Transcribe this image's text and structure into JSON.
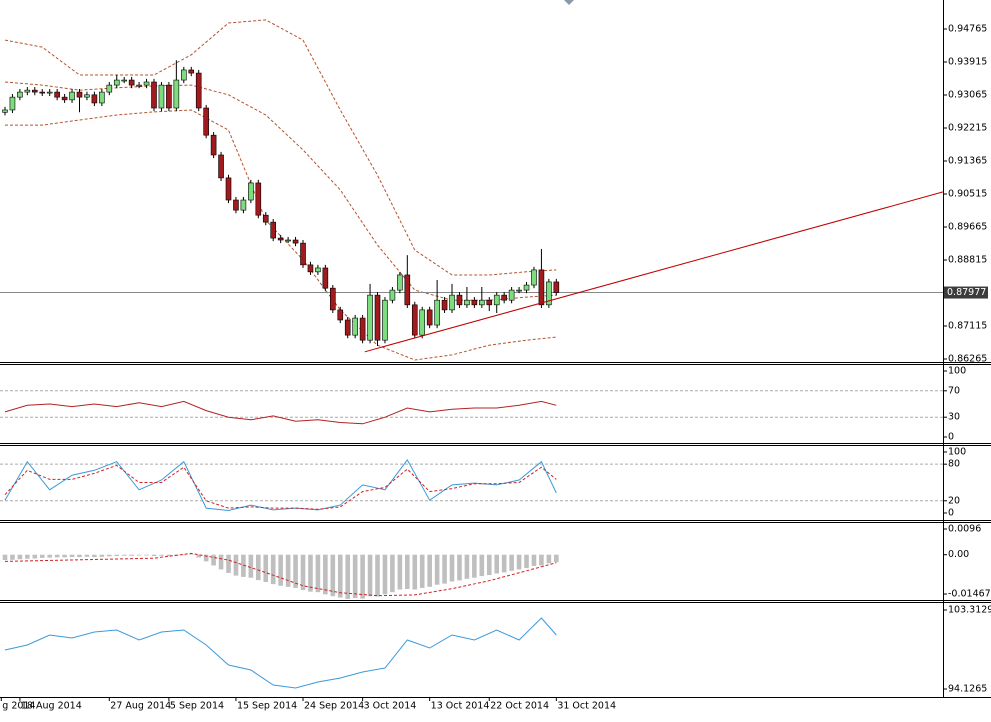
{
  "chart_data": [
    {
      "type": "candlestick",
      "xlim": [
        -0.67,
        125.9
      ],
      "ylim": [
        0.86188,
        0.95512
      ],
      "yticks": [
        0.94765,
        0.93915,
        0.93065,
        0.92215,
        0.91365,
        0.90515,
        0.89665,
        0.88815,
        0.87115,
        0.86265
      ],
      "up_color": "#7ddc7d",
      "down_color": "#a01a1e",
      "open": [
        0.9262,
        0.9268,
        0.9301,
        0.9314,
        0.9319,
        0.9314,
        0.9312,
        0.9314,
        0.9301,
        0.9294,
        0.9314,
        0.9301,
        0.9307,
        0.9286,
        0.9314,
        0.9332,
        0.9345,
        0.9345,
        0.9332,
        0.9332,
        0.934,
        0.9273,
        0.9332,
        0.9273,
        0.9345,
        0.9371,
        0.9363,
        0.9273,
        0.9203,
        0.9152,
        0.9093,
        0.9036,
        0.901,
        0.9036,
        0.908,
        0.8997,
        0.8979,
        0.8938,
        0.8933,
        0.8933,
        0.8925,
        0.8869,
        0.8851,
        0.8861,
        0.8809,
        0.8753,
        0.8727,
        0.8688,
        0.8732,
        0.8675,
        0.8791,
        0.8675,
        0.8778,
        0.8804,
        0.8843,
        0.8766,
        0.8688,
        0.8753,
        0.8714,
        0.8778,
        0.8753,
        0.8791,
        0.8766,
        0.8778,
        0.8766,
        0.8778,
        0.8766,
        0.8791,
        0.8778,
        0.8804,
        0.8804,
        0.8817,
        0.8856,
        0.8766,
        0.8825
      ],
      "high": [
        0.9276,
        0.9309,
        0.9322,
        0.9327,
        0.9327,
        0.9322,
        0.9322,
        0.9322,
        0.9309,
        0.9322,
        0.9322,
        0.9315,
        0.9315,
        0.9322,
        0.934,
        0.9358,
        0.9353,
        0.9353,
        0.934,
        0.9348,
        0.9348,
        0.934,
        0.934,
        0.9396,
        0.9379,
        0.9379,
        0.9371,
        0.9281,
        0.9211,
        0.916,
        0.9101,
        0.9044,
        0.9044,
        0.9088,
        0.9088,
        0.9005,
        0.8987,
        0.8946,
        0.8941,
        0.8941,
        0.8933,
        0.8877,
        0.8869,
        0.8869,
        0.8817,
        0.8761,
        0.8735,
        0.874,
        0.874,
        0.882,
        0.8799,
        0.8786,
        0.8812,
        0.8851,
        0.8894,
        0.8774,
        0.8761,
        0.8761,
        0.883,
        0.8786,
        0.882,
        0.8799,
        0.8812,
        0.8786,
        0.8812,
        0.8786,
        0.8799,
        0.8799,
        0.8812,
        0.8812,
        0.8825,
        0.8864,
        0.891,
        0.8833,
        0.8833
      ],
      "low": [
        0.9254,
        0.926,
        0.9293,
        0.9306,
        0.9306,
        0.9304,
        0.9304,
        0.9293,
        0.9286,
        0.9286,
        0.9262,
        0.9293,
        0.9278,
        0.9278,
        0.9306,
        0.9324,
        0.9337,
        0.9324,
        0.9324,
        0.9324,
        0.9265,
        0.9265,
        0.9265,
        0.9265,
        0.9337,
        0.9355,
        0.9265,
        0.9195,
        0.9144,
        0.9085,
        0.9028,
        0.9002,
        0.9002,
        0.9028,
        0.8989,
        0.8971,
        0.893,
        0.8925,
        0.8925,
        0.8917,
        0.8861,
        0.8843,
        0.8843,
        0.8801,
        0.8745,
        0.8719,
        0.868,
        0.868,
        0.8667,
        0.8667,
        0.866,
        0.8667,
        0.877,
        0.8796,
        0.8758,
        0.868,
        0.868,
        0.8706,
        0.8706,
        0.8745,
        0.8745,
        0.8758,
        0.8758,
        0.8758,
        0.8758,
        0.875,
        0.8745,
        0.877,
        0.877,
        0.8796,
        0.8796,
        0.8809,
        0.8758,
        0.8758,
        0.879
      ],
      "close": [
        0.9268,
        0.9301,
        0.9314,
        0.9319,
        0.9314,
        0.9312,
        0.9314,
        0.9301,
        0.9294,
        0.9314,
        0.9301,
        0.9307,
        0.9286,
        0.9314,
        0.9332,
        0.9345,
        0.9345,
        0.9332,
        0.9332,
        0.934,
        0.9273,
        0.9332,
        0.9273,
        0.9345,
        0.9371,
        0.9363,
        0.9273,
        0.9203,
        0.9152,
        0.9093,
        0.9036,
        0.901,
        0.9036,
        0.908,
        0.8997,
        0.8979,
        0.8938,
        0.8933,
        0.8933,
        0.8925,
        0.8869,
        0.8851,
        0.8861,
        0.8809,
        0.8753,
        0.8727,
        0.8688,
        0.8732,
        0.8675,
        0.8791,
        0.8675,
        0.8778,
        0.8804,
        0.8843,
        0.8766,
        0.8688,
        0.8753,
        0.8714,
        0.8778,
        0.8753,
        0.8791,
        0.8766,
        0.8778,
        0.8766,
        0.8778,
        0.8766,
        0.8791,
        0.8778,
        0.8804,
        0.8804,
        0.8817,
        0.8856,
        0.8766,
        0.8825,
        0.87977
      ],
      "bands": {
        "color": "#b5522e",
        "x": [
          0,
          5,
          10,
          15,
          20,
          25,
          30,
          35,
          40,
          45,
          50,
          55,
          60,
          65,
          70,
          74
        ],
        "upper": [
          0.9448,
          0.943,
          0.9358,
          0.9358,
          0.9358,
          0.941,
          0.9492,
          0.95,
          0.9448,
          0.9268,
          0.91,
          0.8907,
          0.8843,
          0.8843,
          0.8851,
          0.8856
        ],
        "middle": [
          0.934,
          0.9332,
          0.9319,
          0.9325,
          0.933,
          0.9332,
          0.9307,
          0.9255,
          0.9165,
          0.9062,
          0.892,
          0.8804,
          0.8778,
          0.8778,
          0.8786,
          0.8791
        ],
        "lower": [
          0.9229,
          0.9229,
          0.9242,
          0.9255,
          0.9263,
          0.9268,
          0.9216,
          0.8984,
          0.8882,
          0.8753,
          0.8662,
          0.8624,
          0.8637,
          0.8662,
          0.8675,
          0.8683
        ]
      },
      "trendline": {
        "color": "#c00000",
        "x": [
          48.3,
          125.9
        ],
        "values": [
          0.8645,
          0.9057
        ]
      },
      "last_price": 0.87977
    },
    {
      "type": "line",
      "xlim": [
        -0.67,
        125.9
      ],
      "ylim": [
        -9.1,
        109.1
      ],
      "yticks": [
        100,
        70,
        30,
        0
      ],
      "levels": [
        70,
        30
      ],
      "x": [
        0,
        3,
        6,
        9,
        12,
        15,
        18,
        21,
        24,
        27,
        30,
        33,
        36,
        39,
        42,
        45,
        48,
        51,
        54,
        57,
        60,
        63,
        66,
        69,
        72,
        74
      ],
      "series": [
        {
          "color": "#b22222",
          "values": [
            38,
            48,
            50,
            46,
            50,
            46,
            52,
            46,
            54,
            40,
            30,
            26,
            32,
            24,
            26,
            22,
            20,
            30,
            44,
            38,
            42,
            44,
            44,
            48,
            54,
            48
          ]
        }
      ]
    },
    {
      "type": "line",
      "xlim": [
        -0.67,
        125.9
      ],
      "ylim": [
        -11.5,
        109.8
      ],
      "yticks": [
        100,
        80,
        20,
        0
      ],
      "levels": [
        80,
        20
      ],
      "x": [
        0,
        3,
        6,
        9,
        12,
        15,
        18,
        21,
        24,
        27,
        30,
        33,
        36,
        39,
        42,
        45,
        48,
        51,
        54,
        57,
        60,
        63,
        66,
        69,
        72,
        74
      ],
      "series": [
        {
          "color": "#3a9ad9",
          "values": [
            21,
            84,
            38,
            62,
            70,
            84,
            38,
            54,
            84,
            8,
            4,
            13,
            5,
            8,
            5,
            13,
            46,
            38,
            87,
            21,
            46,
            49,
            46,
            54,
            84,
            33
          ]
        },
        {
          "color": "#d02020",
          "dashed": true,
          "values": [
            30,
            70,
            55,
            55,
            65,
            78,
            50,
            50,
            75,
            20,
            8,
            10,
            8,
            8,
            6,
            10,
            35,
            42,
            72,
            35,
            40,
            48,
            48,
            50,
            75,
            55
          ]
        }
      ]
    },
    {
      "type": "bar",
      "xlim": [
        -0.67,
        125.9
      ],
      "ylim": [
        -0.01692,
        0.01184
      ],
      "yticks": [
        0.0096,
        {
          "value": 0,
          "label": "0.00"
        },
        -0.014678
      ],
      "color": "#bfbfbf",
      "values": [
        -0.002,
        -0.0019,
        -0.0017,
        -0.0015,
        -0.0014,
        -0.0012,
        -0.0011,
        -0.001,
        -0.001,
        -0.0009,
        -0.0009,
        -0.0008,
        -0.0009,
        -0.0008,
        -0.0006,
        -0.0005,
        -0.0004,
        -0.0004,
        -0.0003,
        -0.0003,
        -0.0005,
        -0.0004,
        -0.0006,
        -0.0004,
        -0.0002,
        0.0001,
        -0.001,
        -0.0025,
        -0.004,
        -0.0055,
        -0.0068,
        -0.0078,
        -0.0083,
        -0.0086,
        -0.0095,
        -0.0102,
        -0.011,
        -0.0116,
        -0.012,
        -0.0124,
        -0.0132,
        -0.0138,
        -0.014,
        -0.0148,
        -0.0155,
        -0.016,
        -0.0165,
        -0.0162,
        -0.0164,
        -0.0155,
        -0.0156,
        -0.0148,
        -0.014,
        -0.013,
        -0.0128,
        -0.013,
        -0.0124,
        -0.012,
        -0.0112,
        -0.0108,
        -0.01,
        -0.0096,
        -0.009,
        -0.0086,
        -0.008,
        -0.0076,
        -0.007,
        -0.0066,
        -0.006,
        -0.0055,
        -0.005,
        -0.0042,
        -0.004,
        -0.0032,
        -0.0028
      ],
      "signal": {
        "color": "#d02020",
        "dashed": true,
        "x": [
          0,
          20,
          25,
          30,
          35,
          40,
          45,
          50,
          55,
          60,
          65,
          70,
          74
        ],
        "values": [
          -0.0025,
          -0.0013,
          0.0005,
          -0.002,
          -0.0067,
          -0.0116,
          -0.0142,
          -0.0153,
          -0.015,
          -0.0127,
          -0.0097,
          -0.006,
          -0.003
        ]
      }
    },
    {
      "type": "line",
      "xlim": [
        -0.67,
        125.9
      ],
      "ylim": [
        93.196,
        104.127
      ],
      "yticks": [
        103.3129,
        94.1265
      ],
      "x": [
        0,
        3,
        6,
        9,
        12,
        15,
        18,
        21,
        24,
        27,
        30,
        33,
        36,
        39,
        42,
        45,
        48,
        51,
        54,
        57,
        60,
        63,
        66,
        69,
        72,
        74
      ],
      "series": [
        {
          "color": "#3a9ad9",
          "values": [
            98.66,
            99.24,
            100.41,
            100.06,
            100.75,
            100.99,
            99.83,
            100.75,
            100.99,
            99.24,
            96.92,
            96.34,
            94.59,
            94.24,
            94.94,
            95.41,
            96.1,
            96.57,
            99.83,
            98.89,
            100.41,
            99.83,
            100.99,
            99.83,
            102.38,
            100.41
          ]
        }
      ],
      "xticks": [
        {
          "value": -0.5,
          "label": "g 2014"
        },
        {
          "value": 2,
          "label": "18 Aug 2014"
        },
        {
          "value": 14,
          "label": "27 Aug 2014"
        },
        {
          "value": 22,
          "label": "5 Sep 2014"
        },
        {
          "value": 31,
          "label": "15 Sep 2014"
        },
        {
          "value": 40,
          "label": "24 Sep 2014"
        },
        {
          "value": 48,
          "label": "3 Oct 2014"
        },
        {
          "value": 57,
          "label": "13 Oct 2014"
        },
        {
          "value": 65,
          "label": "22 Oct 2014"
        },
        {
          "value": 74,
          "label": "31 Oct 2014"
        }
      ]
    }
  ]
}
